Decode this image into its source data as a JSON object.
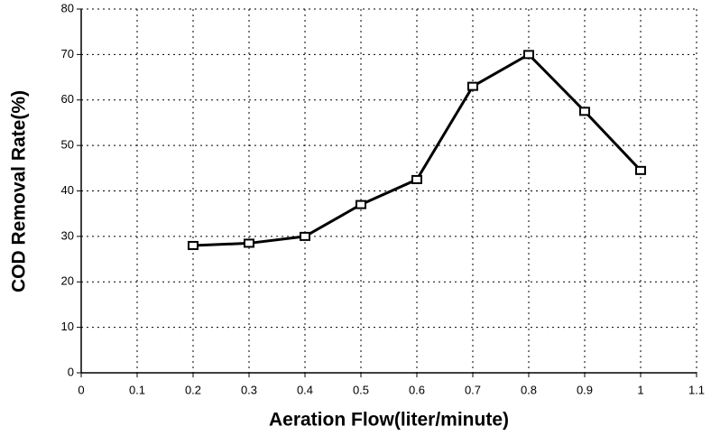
{
  "chart_data": {
    "type": "line",
    "x_label": "Aeration Flow(liter/minute)",
    "y_label": "COD Removal Rate(%)",
    "x": [
      0.2,
      0.3,
      0.4,
      0.5,
      0.6,
      0.7,
      0.8,
      0.9,
      1
    ],
    "series": [
      {
        "color": "#000000",
        "values": [
          28,
          28.5,
          30,
          37,
          42.5,
          63,
          70,
          57.5,
          44.5
        ]
      }
    ],
    "xlim": [
      0,
      1.1
    ],
    "xticks": [
      0,
      0.1,
      0.2,
      0.3,
      0.4,
      0.5,
      0.6,
      0.7,
      0.8,
      0.9,
      1,
      1.1
    ],
    "ylim": [
      0,
      80
    ],
    "yticks": [
      0,
      10,
      20,
      30,
      40,
      50,
      60,
      70,
      80
    ],
    "grid": true
  }
}
